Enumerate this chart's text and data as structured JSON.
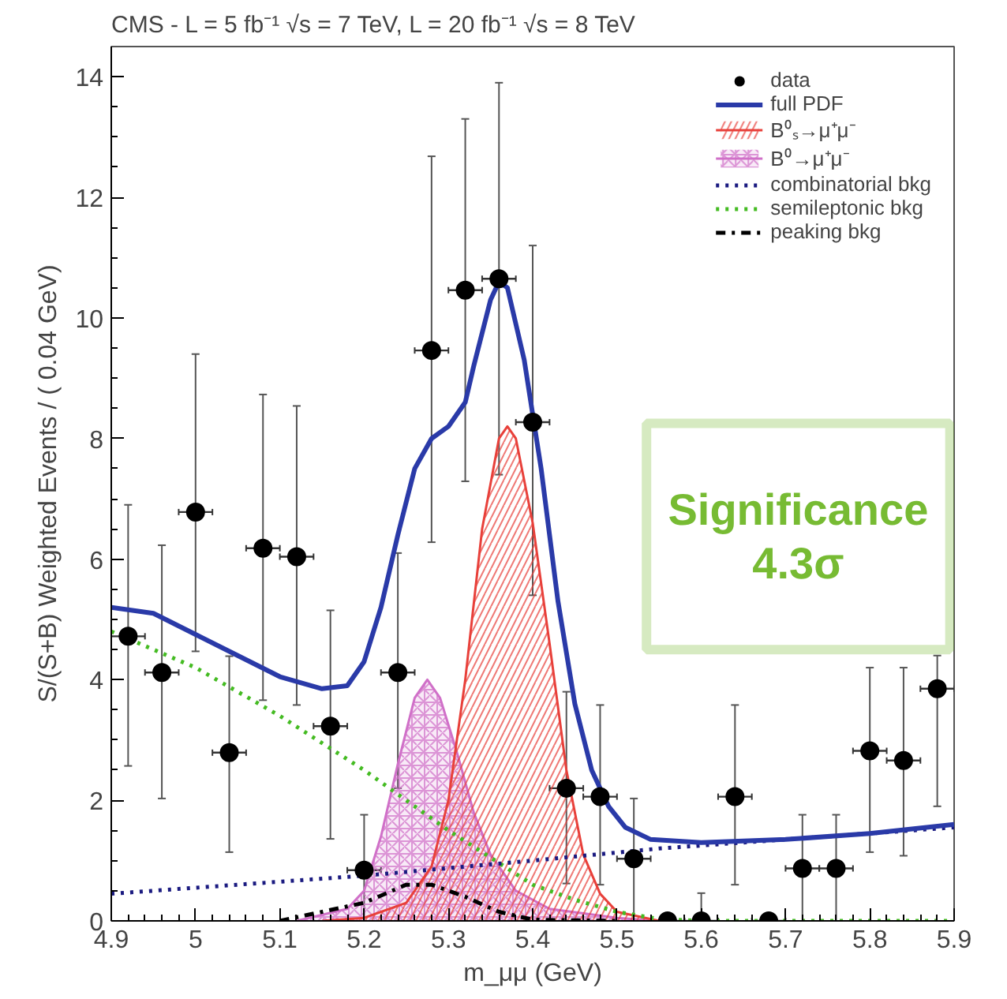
{
  "chart_data": {
    "type": "scatter",
    "title": "CMS - L = 5 fb⁻¹ √s = 7 TeV, L = 20 fb⁻¹ √s = 8 TeV",
    "xlabel": "m_μμ (GeV)",
    "ylabel": "S/(S+B) Weighted Events / ( 0.04 GeV)",
    "xlim": [
      4.9,
      5.9
    ],
    "xticks": [
      4.9,
      5,
      5.1,
      5.2,
      5.3,
      5.4,
      5.5,
      5.6,
      5.7,
      5.8,
      5.9
    ],
    "ylim": [
      0,
      14.5
    ],
    "yticks": [
      0,
      2,
      4,
      6,
      8,
      10,
      12,
      14
    ],
    "grid": false,
    "legend": "top right",
    "annotations": [
      "Significance\n4.3σ"
    ],
    "series": [
      {
        "name": "data",
        "marker": "circle",
        "color": "#000000",
        "x": [
          4.92,
          4.96,
          5.0,
          5.04,
          5.08,
          5.12,
          5.16,
          5.2,
          5.24,
          5.28,
          5.32,
          5.36,
          5.4,
          5.44,
          5.48,
          5.52,
          5.56,
          5.6,
          5.64,
          5.68,
          5.72,
          5.76,
          5.8,
          5.84,
          5.88
        ],
        "values": [
          4.72,
          4.12,
          6.78,
          2.79,
          6.18,
          6.04,
          3.23,
          0.84,
          4.12,
          9.46,
          10.46,
          10.65,
          8.27,
          2.2,
          2.06,
          1.03,
          0,
          0,
          2.06,
          0,
          0.87,
          0.87,
          2.82,
          2.66,
          3.85
        ],
        "errors": [
          [
            2.57,
            6.9
          ],
          [
            2.03,
            6.23
          ],
          [
            4.47,
            9.4
          ],
          [
            1.14,
            4.39
          ],
          [
            3.66,
            8.73
          ],
          [
            3.58,
            8.54
          ],
          [
            1.36,
            5.15
          ],
          [
            0,
            1.76
          ],
          [
            2.2,
            6.1
          ],
          [
            6.28,
            12.68
          ],
          [
            7.29,
            13.3
          ],
          [
            7.4,
            13.9
          ],
          [
            5.4,
            11.2
          ],
          [
            0.62,
            3.8
          ],
          [
            0.6,
            3.58
          ],
          [
            0,
            2.03
          ],
          null,
          [
            0,
            0.46
          ],
          [
            0.6,
            3.58
          ],
          null,
          [
            0,
            1.76
          ],
          [
            0,
            1.76
          ],
          [
            1.14,
            4.2
          ],
          [
            1.08,
            4.2
          ],
          [
            1.9,
            4.4
          ]
        ],
        "xerrors": [
          0.02,
          0.02,
          0.02,
          0.02,
          0.02,
          0.02,
          0.02,
          0.02,
          0.02,
          0.02,
          0.02,
          0.02,
          0.02,
          0.02,
          0.02,
          0.02,
          0.02,
          0.02,
          0.02,
          0.02,
          0.02,
          0.02,
          0.02,
          0.02,
          0.02
        ]
      },
      {
        "name": "full PDF",
        "type": "line",
        "line_style": "solid",
        "color": "#2a3aa8",
        "x": [
          4.9,
          4.95,
          5.0,
          5.05,
          5.1,
          5.15,
          5.18,
          5.2,
          5.22,
          5.24,
          5.26,
          5.28,
          5.3,
          5.32,
          5.33,
          5.35,
          5.36,
          5.37,
          5.39,
          5.41,
          5.43,
          5.45,
          5.47,
          5.49,
          5.51,
          5.54,
          5.6,
          5.7,
          5.8,
          5.9
        ],
        "values": [
          5.2,
          5.1,
          4.75,
          4.4,
          4.05,
          3.85,
          3.9,
          4.3,
          5.2,
          6.4,
          7.5,
          8.0,
          8.2,
          8.6,
          9.2,
          10.3,
          10.6,
          10.5,
          9.3,
          7.5,
          5.3,
          3.6,
          2.5,
          1.9,
          1.55,
          1.35,
          1.3,
          1.35,
          1.45,
          1.6
        ]
      },
      {
        "name": "B⁰ₛ→μ⁺μ⁻",
        "type": "area",
        "color": "#e8403a",
        "x": [
          5.15,
          5.2,
          5.25,
          5.28,
          5.3,
          5.32,
          5.34,
          5.36,
          5.37,
          5.38,
          5.4,
          5.42,
          5.44,
          5.46,
          5.48,
          5.5,
          5.55
        ],
        "values": [
          0,
          0.05,
          0.3,
          0.9,
          2.0,
          4.0,
          6.5,
          8.0,
          8.2,
          8.0,
          6.6,
          4.6,
          2.5,
          1.1,
          0.45,
          0.15,
          0
        ]
      },
      {
        "name": "B⁰→μ⁺μ⁻",
        "type": "area",
        "color": "#d070c8",
        "x": [
          5.12,
          5.18,
          5.2,
          5.22,
          5.24,
          5.26,
          5.275,
          5.29,
          5.31,
          5.33,
          5.35,
          5.38,
          5.42,
          5.5,
          5.55
        ],
        "values": [
          0,
          0.2,
          0.5,
          1.4,
          2.6,
          3.7,
          4.0,
          3.7,
          2.8,
          1.8,
          1.1,
          0.5,
          0.2,
          0.05,
          0
        ]
      },
      {
        "name": "combinatorial bkg",
        "type": "line",
        "line_style": "dotted",
        "color": "#1a1a80",
        "x": [
          4.9,
          5.2,
          5.4,
          5.55,
          5.9
        ],
        "values": [
          0.45,
          0.75,
          1.0,
          1.2,
          1.55
        ]
      },
      {
        "name": "semileptonic bkg",
        "type": "line",
        "line_style": "dotted",
        "color": "#44bb22",
        "x": [
          4.9,
          5.0,
          5.1,
          5.2,
          5.3,
          5.4,
          5.45,
          5.5,
          5.55,
          5.6,
          5.9
        ],
        "values": [
          4.8,
          4.2,
          3.4,
          2.5,
          1.5,
          0.6,
          0.35,
          0.15,
          0.03,
          0,
          0
        ]
      },
      {
        "name": "peaking bkg",
        "type": "line",
        "line_style": "dashed",
        "color": "#000000",
        "x": [
          5.1,
          5.2,
          5.25,
          5.28,
          5.32,
          5.36,
          5.4,
          5.5
        ],
        "values": [
          0,
          0.3,
          0.6,
          0.6,
          0.4,
          0.15,
          0.02,
          0
        ]
      }
    ]
  }
}
